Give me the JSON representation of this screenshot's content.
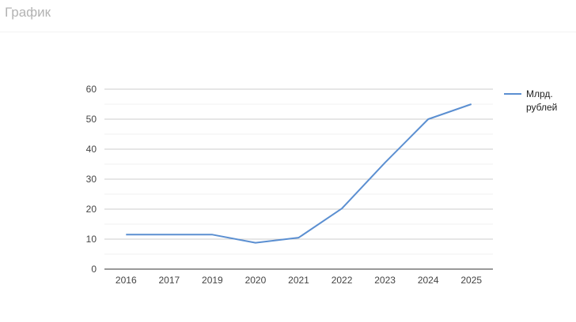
{
  "header": {
    "title": "График"
  },
  "chart_data": {
    "type": "line",
    "title": "",
    "xlabel": "",
    "ylabel": "",
    "categories": [
      "2016",
      "2017",
      "2019",
      "2020",
      "2021",
      "2022",
      "2023",
      "2024",
      "2025"
    ],
    "series": [
      {
        "name": "Млрд. рублей",
        "name_lines": [
          "Млрд.",
          "рублей"
        ],
        "color": "#5b8fd1",
        "values": [
          11.5,
          11.5,
          11.5,
          8.8,
          10.5,
          20.2,
          35.5,
          50.0,
          55.0
        ]
      }
    ],
    "yticks": [
      0,
      10,
      20,
      30,
      40,
      50,
      60
    ],
    "ylim": [
      0,
      60
    ],
    "grid": true,
    "legend": "right"
  }
}
